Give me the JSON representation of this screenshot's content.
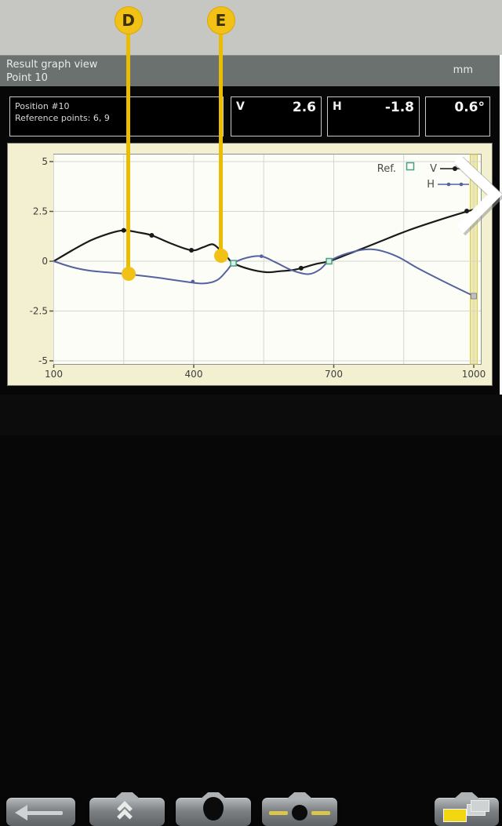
{
  "callouts": [
    {
      "label": "D"
    },
    {
      "label": "E"
    }
  ],
  "header": {
    "title": "Result graph view",
    "subtitle": "Point 10",
    "unit": "mm"
  },
  "info": {
    "position": "Position #10",
    "reference": "Reference points: 6, 9",
    "readouts": [
      {
        "label": "V",
        "value": "2.6"
      },
      {
        "label": "H",
        "value": "-1.8"
      },
      {
        "label": "",
        "value": "0.6°"
      }
    ]
  },
  "chart_data": {
    "type": "line",
    "title": "",
    "xlabel": "",
    "ylabel": "",
    "unit": "mm",
    "xlim": [
      100,
      1000
    ],
    "ylim": [
      -5,
      5
    ],
    "x_ticks": [
      100,
      400,
      700,
      1000
    ],
    "x_tick_labels": [
      "100",
      "400",
      "700",
      "1000"
    ],
    "x_gridlines": [
      100,
      250,
      400,
      550,
      700,
      850,
      1000
    ],
    "y_ticks": [
      5,
      2.5,
      0,
      -2.5,
      -5
    ],
    "y_tick_labels": [
      "5",
      "2.5",
      "0",
      "-2.5",
      "-5"
    ],
    "grid": true,
    "legend_position": "top-right",
    "legend_ref_label": "Ref.",
    "cursor_x": 1000,
    "series": [
      {
        "name": "V",
        "color": "#1a1a1a",
        "points": [
          [
            100,
            0
          ],
          [
            140,
            0.55
          ],
          [
            180,
            1.05
          ],
          [
            220,
            1.4
          ],
          [
            250,
            1.55
          ],
          [
            280,
            1.45
          ],
          [
            310,
            1.3
          ],
          [
            350,
            0.9
          ],
          [
            395,
            0.55
          ],
          [
            420,
            0.7
          ],
          [
            440,
            0.85
          ],
          [
            455,
            0.6
          ],
          [
            470,
            0.25
          ],
          [
            485,
            -0.1
          ],
          [
            520,
            -0.4
          ],
          [
            555,
            -0.55
          ],
          [
            585,
            -0.5
          ],
          [
            610,
            -0.45
          ],
          [
            630,
            -0.35
          ],
          [
            660,
            -0.15
          ],
          [
            690,
            0
          ],
          [
            730,
            0.35
          ],
          [
            790,
            0.9
          ],
          [
            860,
            1.55
          ],
          [
            930,
            2.1
          ],
          [
            1000,
            2.6
          ]
        ],
        "markers": [
          [
            250,
            1.55
          ],
          [
            310,
            1.3
          ],
          [
            395,
            0.55
          ],
          [
            630,
            -0.35
          ],
          [
            985,
            2.52
          ]
        ]
      },
      {
        "name": "H",
        "color": "#55629f",
        "points": [
          [
            100,
            0
          ],
          [
            140,
            -0.3
          ],
          [
            180,
            -0.48
          ],
          [
            250,
            -0.63
          ],
          [
            320,
            -0.82
          ],
          [
            380,
            -1.02
          ],
          [
            420,
            -1.12
          ],
          [
            450,
            -0.95
          ],
          [
            470,
            -0.5
          ],
          [
            485,
            -0.1
          ],
          [
            515,
            0.18
          ],
          [
            545,
            0.25
          ],
          [
            575,
            -0.05
          ],
          [
            610,
            -0.45
          ],
          [
            645,
            -0.65
          ],
          [
            670,
            -0.42
          ],
          [
            690,
            0
          ],
          [
            730,
            0.4
          ],
          [
            780,
            0.6
          ],
          [
            830,
            0.3
          ],
          [
            880,
            -0.35
          ],
          [
            930,
            -0.95
          ],
          [
            1000,
            -1.75
          ]
        ],
        "markers": [
          [
            398,
            -1.02
          ],
          [
            545,
            0.25
          ]
        ]
      }
    ],
    "ref_points": [
      [
        485,
        -0.1
      ],
      [
        690,
        0
      ]
    ],
    "cursor_marker": [
      1000,
      -1.75
    ],
    "callout_points": [
      {
        "label": "D",
        "x": 260,
        "y": -0.63
      },
      {
        "label": "E",
        "x": 458,
        "y": 0.28
      }
    ]
  },
  "colors": {
    "annotation_yellow": "#f1c116",
    "cursor_band": "#f0eaa8",
    "v_series": "#1a1a1a",
    "h_series": "#55629f",
    "ref_green": "#44a183",
    "titlebar": "#6a716f"
  },
  "toolbar": {
    "buttons": [
      {
        "name": "back",
        "icon": "arrow-left"
      },
      {
        "name": "collapse",
        "icon": "double-chevron-up"
      },
      {
        "name": "laser-dot",
        "icon": "black-dot"
      },
      {
        "name": "adjust",
        "icon": "slider"
      },
      {
        "name": "documents",
        "icon": "folder-stack"
      }
    ]
  },
  "nav": {
    "next": {
      "icon": "chevron-right"
    }
  }
}
